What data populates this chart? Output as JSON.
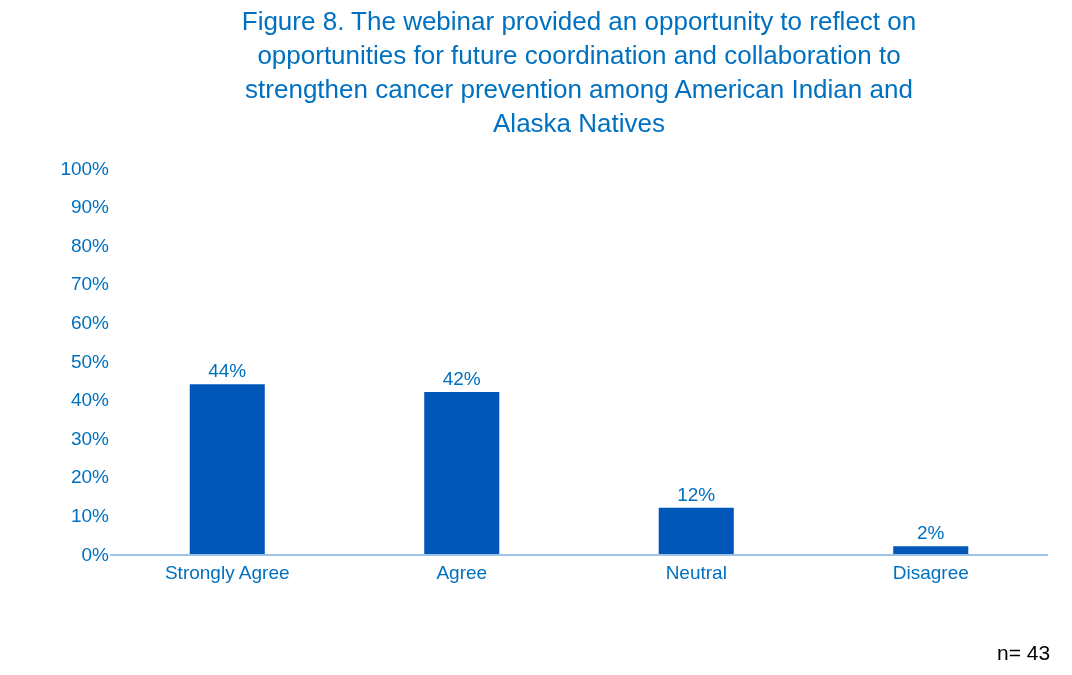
{
  "chart_data": {
    "type": "bar",
    "title": "Figure 8. The webinar provided an opportunity to reflect on opportunities for future coordination and collaboration to strengthen cancer prevention among American Indian and Alaska Natives",
    "categories": [
      "Strongly Agree",
      "Agree",
      "Neutral",
      "Disagree"
    ],
    "values": [
      44,
      42,
      12,
      2
    ],
    "value_labels": [
      "44%",
      "42%",
      "12%",
      "2%"
    ],
    "color": "#0057b8",
    "ylim": [
      0,
      100
    ],
    "yticks": [
      {
        "value": 0,
        "label": "0%"
      },
      {
        "value": 10,
        "label": "10%"
      },
      {
        "value": 20,
        "label": "20%"
      },
      {
        "value": 30,
        "label": "30%"
      },
      {
        "value": 40,
        "label": "40%"
      },
      {
        "value": 50,
        "label": "50%"
      },
      {
        "value": 60,
        "label": "60%"
      },
      {
        "value": 70,
        "label": "70%"
      },
      {
        "value": 80,
        "label": "80%"
      },
      {
        "value": 90,
        "label": "90%"
      },
      {
        "value": 100,
        "label": "100%"
      }
    ],
    "annotations": [
      "n= 43"
    ]
  }
}
